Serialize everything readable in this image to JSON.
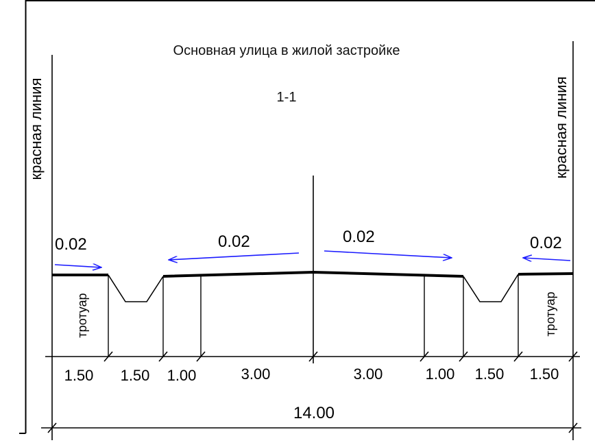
{
  "drawing": {
    "title": "Основная улица в жилой застройке",
    "section_label": "1-1",
    "red_line_left": "красная линия",
    "red_line_right": "красная линия",
    "sidewalk_left": "тротуар",
    "sidewalk_right": "тротуар",
    "slopes": [
      "0.02",
      "0.02",
      "0.02",
      "0.02"
    ],
    "dimensions": [
      "1.50",
      "1.50",
      "1.00",
      "3.00",
      "3.00",
      "1.00",
      "1.50",
      "1.50"
    ],
    "total": "14.00",
    "colors": {
      "line": "#000000",
      "arrow": "#1a1aff"
    }
  }
}
